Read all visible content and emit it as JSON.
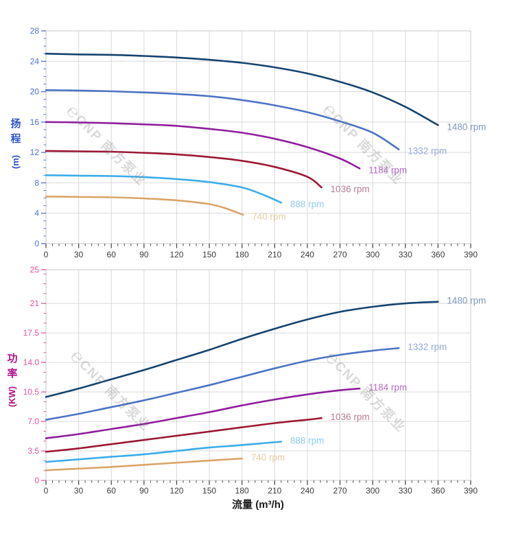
{
  "watermark": {
    "glyph": "℮",
    "brand": "CNP 南方泵业",
    "text": "℮CNP 南方泵业"
  },
  "colors": {
    "grid": "#d9d9d9",
    "border": "#c9c9c9",
    "x_tick": "#4a4a4a",
    "x_label": "#3a3a3a",
    "x_title": "#1b1b1b"
  },
  "chart_data": [
    {
      "type": "line",
      "id": "head",
      "title": "",
      "xlabel": "流量 (m³/h)",
      "ylabel": "扬程 (m)",
      "ylabel_unit": "(m)",
      "xlim": [
        0,
        390
      ],
      "ylim": [
        0,
        28
      ],
      "x_ticks": [
        0,
        30,
        60,
        90,
        120,
        150,
        180,
        210,
        240,
        270,
        300,
        330,
        360,
        390
      ],
      "x_minor_step": 6,
      "y_ticks": [
        0,
        4,
        8,
        12,
        16,
        20,
        24,
        28
      ],
      "y_tick_labels": [
        "0",
        "4",
        "8",
        "12",
        "16",
        "20",
        "24",
        "28"
      ],
      "y_minor_step": 1,
      "grid": true,
      "legend_position": "curve-end-labels",
      "tick_label_color": "#4a6fd6",
      "tick_color": "#4a6fd6",
      "title_color": "#2e54c8",
      "series": [
        {
          "name": "1480 rpm",
          "color": "#14436f",
          "label_color": "#7e97bd",
          "points": [
            [
              0,
              25
            ],
            [
              30,
              24.9
            ],
            [
              60,
              24.85
            ],
            [
              90,
              24.7
            ],
            [
              120,
              24.5
            ],
            [
              150,
              24.2
            ],
            [
              180,
              23.8
            ],
            [
              210,
              23.2
            ],
            [
              240,
              22.4
            ],
            [
              270,
              21.3
            ],
            [
              300,
              19.9
            ],
            [
              330,
              18
            ],
            [
              360,
              15.6
            ]
          ]
        },
        {
          "name": "1332 rpm",
          "color": "#4b73c4",
          "label_color": "#93a9dc",
          "points": [
            [
              0,
              20.2
            ],
            [
              30,
              20.15
            ],
            [
              60,
              20.05
            ],
            [
              90,
              19.9
            ],
            [
              120,
              19.7
            ],
            [
              150,
              19.4
            ],
            [
              180,
              18.9
            ],
            [
              210,
              18.2
            ],
            [
              240,
              17.3
            ],
            [
              270,
              16.1
            ],
            [
              300,
              14.6
            ],
            [
              324,
              12.4
            ]
          ]
        },
        {
          "name": "1184 rpm",
          "color": "#8f1d9b",
          "label_color": "#b56cc5",
          "points": [
            [
              0,
              16
            ],
            [
              30,
              15.95
            ],
            [
              60,
              15.85
            ],
            [
              90,
              15.7
            ],
            [
              120,
              15.5
            ],
            [
              150,
              15.1
            ],
            [
              180,
              14.6
            ],
            [
              210,
              13.8
            ],
            [
              240,
              12.7
            ],
            [
              270,
              11.2
            ],
            [
              288,
              9.9
            ]
          ]
        },
        {
          "name": "1036 rpm",
          "color": "#9c1733",
          "label_color": "#bb7a94",
          "points": [
            [
              0,
              12.2
            ],
            [
              30,
              12.15
            ],
            [
              60,
              12.1
            ],
            [
              90,
              11.95
            ],
            [
              120,
              11.75
            ],
            [
              150,
              11.4
            ],
            [
              180,
              10.9
            ],
            [
              210,
              10.1
            ],
            [
              240,
              8.8
            ],
            [
              253,
              7.4
            ]
          ]
        },
        {
          "name": "888 rpm",
          "color": "#3aace8",
          "label_color": "#8fcdf1",
          "points": [
            [
              0,
              9
            ],
            [
              30,
              8.95
            ],
            [
              60,
              8.9
            ],
            [
              90,
              8.75
            ],
            [
              120,
              8.5
            ],
            [
              150,
              8.1
            ],
            [
              180,
              7.4
            ],
            [
              200,
              6.4
            ],
            [
              216,
              5.4
            ]
          ]
        },
        {
          "name": "740 rpm",
          "color": "#d9a566",
          "label_color": "#e6cba1",
          "points": [
            [
              0,
              6.2
            ],
            [
              30,
              6.15
            ],
            [
              60,
              6.1
            ],
            [
              90,
              5.95
            ],
            [
              120,
              5.7
            ],
            [
              150,
              5.2
            ],
            [
              166,
              4.6
            ],
            [
              181,
              3.8
            ]
          ]
        }
      ]
    },
    {
      "type": "line",
      "id": "power",
      "title": "",
      "xlabel": "流量 (m³/h)",
      "ylabel": "功率 (KW)",
      "ylabel_unit": "(KW)",
      "xlim": [
        0,
        390
      ],
      "ylim": [
        0,
        25
      ],
      "x_ticks": [
        0,
        30,
        60,
        90,
        120,
        150,
        180,
        210,
        240,
        270,
        300,
        330,
        360,
        390
      ],
      "x_minor_step": 6,
      "y_ticks": [
        0,
        3.5,
        7,
        10.5,
        14,
        17.5,
        21,
        25
      ],
      "y_tick_labels": [
        "0",
        "3.5",
        "7.0",
        "10.5",
        "14.0",
        "17.5",
        "21",
        "25"
      ],
      "y_minor_step": 1.1667,
      "grid": true,
      "legend_position": "curve-end-labels",
      "tick_label_color": "#e2519e",
      "tick_color": "#e2519e",
      "title_color": "#b3128a",
      "series": [
        {
          "name": "1480 rpm",
          "color": "#14436f",
          "label_color": "#7e97bd",
          "points": [
            [
              0,
              9.9
            ],
            [
              30,
              10.9
            ],
            [
              60,
              12
            ],
            [
              90,
              13.1
            ],
            [
              120,
              14.3
            ],
            [
              150,
              15.5
            ],
            [
              180,
              16.8
            ],
            [
              210,
              18
            ],
            [
              240,
              19.1
            ],
            [
              270,
              20
            ],
            [
              300,
              20.6
            ],
            [
              330,
              21
            ],
            [
              360,
              21.2
            ]
          ]
        },
        {
          "name": "1332 rpm",
          "color": "#4b73c4",
          "label_color": "#93a9dc",
          "points": [
            [
              0,
              7.2
            ],
            [
              30,
              7.9
            ],
            [
              60,
              8.7
            ],
            [
              90,
              9.5
            ],
            [
              120,
              10.4
            ],
            [
              150,
              11.3
            ],
            [
              180,
              12.3
            ],
            [
              210,
              13.3
            ],
            [
              240,
              14.2
            ],
            [
              270,
              14.9
            ],
            [
              300,
              15.4
            ],
            [
              324,
              15.7
            ]
          ]
        },
        {
          "name": "1184 rpm",
          "color": "#8f1d9b",
          "label_color": "#b56cc5",
          "points": [
            [
              0,
              5
            ],
            [
              30,
              5.5
            ],
            [
              60,
              6.1
            ],
            [
              90,
              6.7
            ],
            [
              120,
              7.4
            ],
            [
              150,
              8.1
            ],
            [
              180,
              8.9
            ],
            [
              210,
              9.6
            ],
            [
              240,
              10.2
            ],
            [
              270,
              10.7
            ],
            [
              288,
              10.9
            ]
          ]
        },
        {
          "name": "1036 rpm",
          "color": "#9c1733",
          "label_color": "#bb7a94",
          "points": [
            [
              0,
              3.4
            ],
            [
              30,
              3.8
            ],
            [
              60,
              4.3
            ],
            [
              90,
              4.8
            ],
            [
              120,
              5.3
            ],
            [
              150,
              5.8
            ],
            [
              180,
              6.3
            ],
            [
              210,
              6.8
            ],
            [
              240,
              7.2
            ],
            [
              253,
              7.4
            ]
          ]
        },
        {
          "name": "888 rpm",
          "color": "#3aace8",
          "label_color": "#8fcdf1",
          "points": [
            [
              0,
              2.2
            ],
            [
              30,
              2.5
            ],
            [
              60,
              2.8
            ],
            [
              90,
              3.1
            ],
            [
              120,
              3.5
            ],
            [
              150,
              3.9
            ],
            [
              180,
              4.2
            ],
            [
              216,
              4.6
            ]
          ]
        },
        {
          "name": "740 rpm",
          "color": "#d9a566",
          "label_color": "#e6cba1",
          "points": [
            [
              0,
              1.2
            ],
            [
              30,
              1.4
            ],
            [
              60,
              1.6
            ],
            [
              90,
              1.85
            ],
            [
              120,
              2.1
            ],
            [
              150,
              2.35
            ],
            [
              180,
              2.6
            ]
          ]
        }
      ]
    }
  ]
}
